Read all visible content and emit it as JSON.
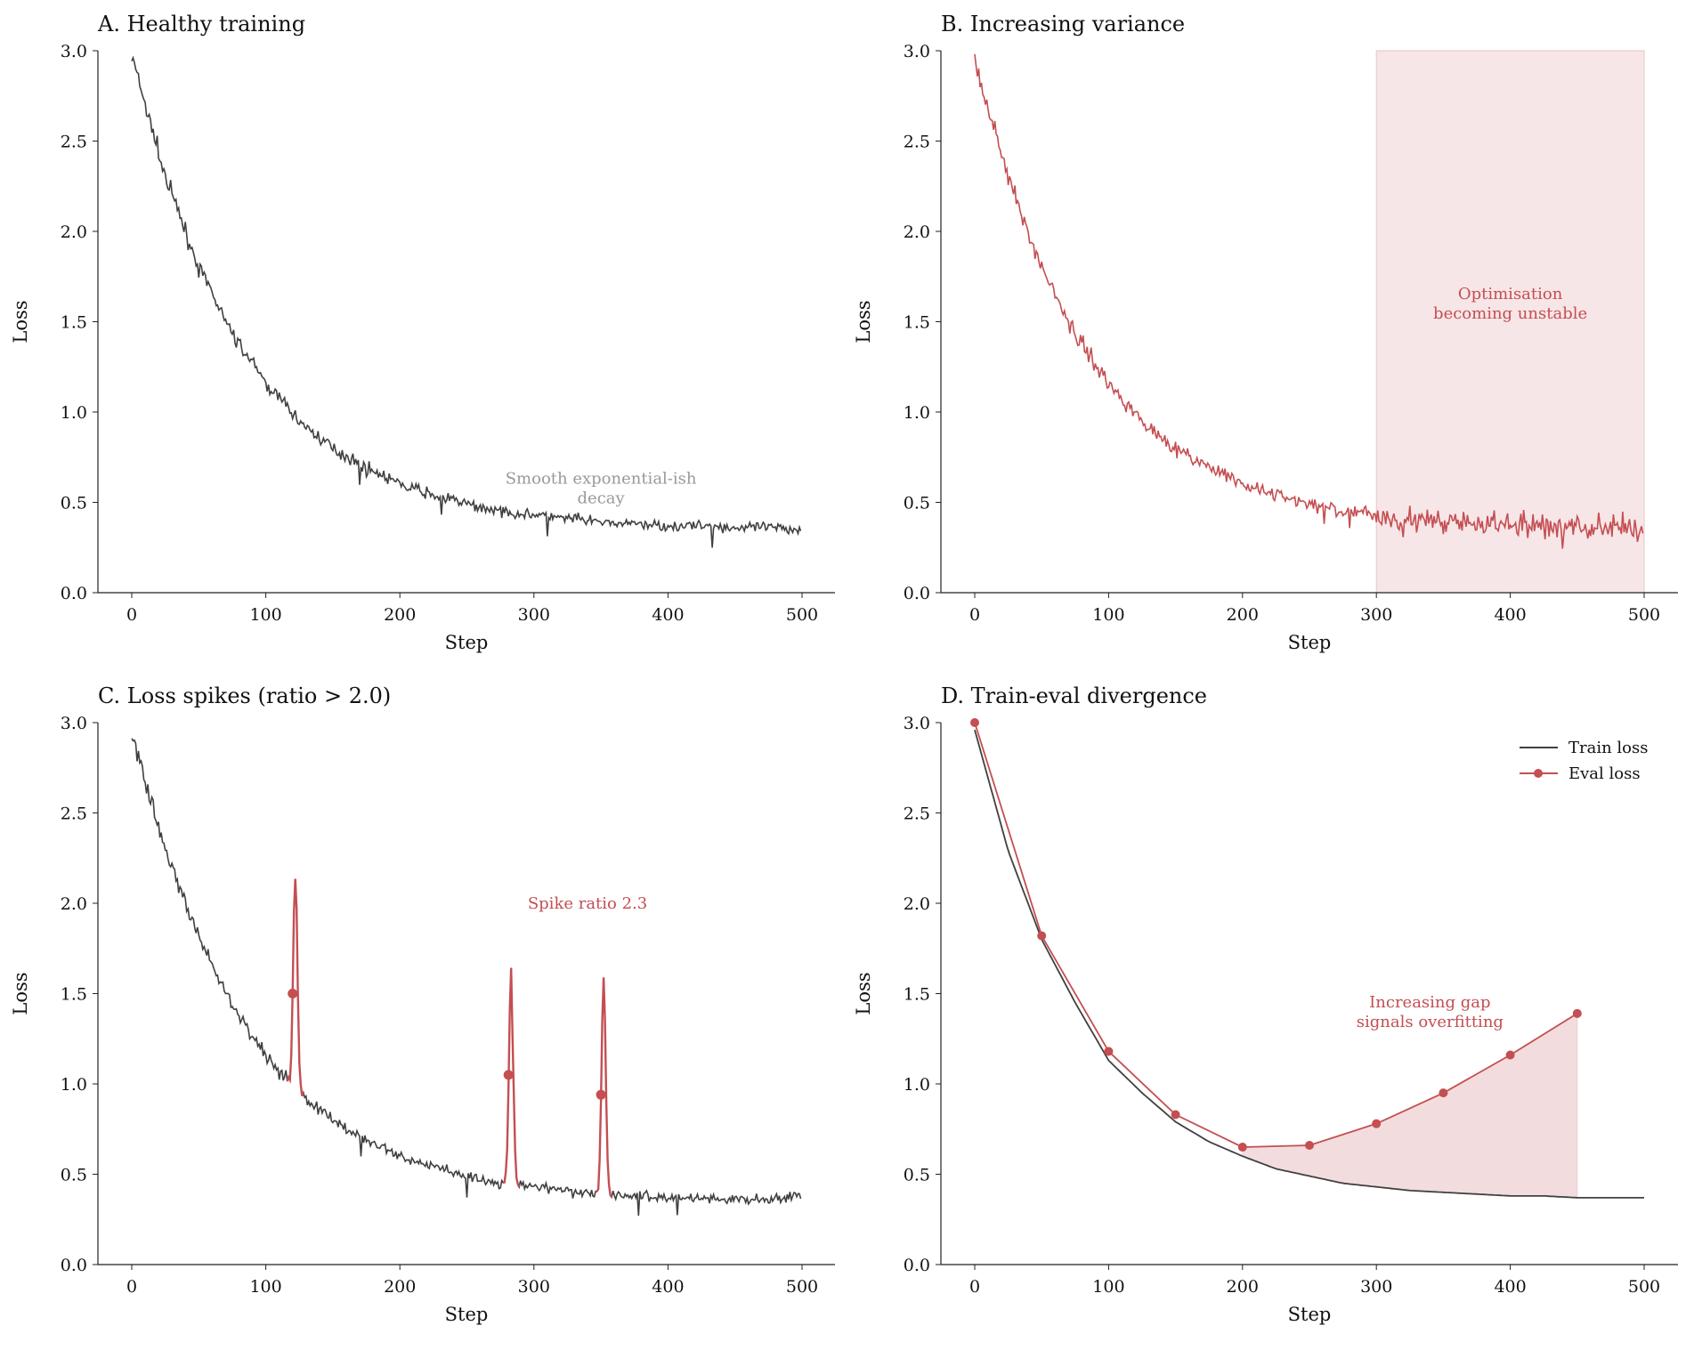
{
  "colors": {
    "train": "#404040",
    "accent": "#c44e52",
    "shade": "#f3dcdd",
    "note": "#999999"
  },
  "chart_data": [
    {
      "type": "line",
      "title": "A. Healthy training",
      "xlabel": "Step",
      "ylabel": "Loss",
      "xlim": [
        -25,
        525
      ],
      "ylim": [
        0,
        3
      ],
      "xticks": [
        "0",
        "100",
        "200",
        "300",
        "400",
        "500"
      ],
      "yticks": [
        "0.0",
        "0.5",
        "1.0",
        "1.5",
        "2.0",
        "2.5",
        "3.0"
      ],
      "grid": false,
      "x": [
        0,
        25,
        50,
        75,
        100,
        125,
        150,
        175,
        200,
        225,
        250,
        275,
        300,
        325,
        350,
        375,
        400,
        425,
        450,
        475,
        500
      ],
      "values": [
        2.97,
        2.3,
        1.8,
        1.43,
        1.16,
        0.95,
        0.8,
        0.69,
        0.6,
        0.54,
        0.49,
        0.45,
        0.43,
        0.41,
        0.39,
        0.38,
        0.37,
        0.37,
        0.36,
        0.36,
        0.35
      ],
      "annotation": {
        "lines": [
          "Smooth exponential-ish",
          "decay"
        ],
        "x": 350,
        "y": 0.58
      }
    },
    {
      "type": "line",
      "title": "B. Increasing variance",
      "xlabel": "Step",
      "ylabel": "Loss",
      "xlim": [
        -25,
        525
      ],
      "ylim": [
        0,
        3
      ],
      "xticks": [
        "0",
        "100",
        "200",
        "300",
        "400",
        "500"
      ],
      "yticks": [
        "0.0",
        "0.5",
        "1.0",
        "1.5",
        "2.0",
        "2.5",
        "3.0"
      ],
      "grid": false,
      "x": [
        0,
        25,
        50,
        75,
        100,
        125,
        150,
        175,
        200,
        225,
        250,
        275,
        300,
        325,
        350,
        375,
        400,
        425,
        450,
        475,
        500
      ],
      "values": [
        2.95,
        2.3,
        1.8,
        1.43,
        1.16,
        0.95,
        0.8,
        0.69,
        0.6,
        0.54,
        0.49,
        0.45,
        0.43,
        0.41,
        0.39,
        0.38,
        0.37,
        0.37,
        0.36,
        0.36,
        0.35
      ],
      "shaded_span": [
        300,
        500
      ],
      "annotation": {
        "lines": [
          "Optimisation",
          "becoming unstable"
        ],
        "x": 400,
        "y": 1.6
      }
    },
    {
      "type": "line",
      "title": "C. Loss spikes (ratio > 2.0)",
      "xlabel": "Step",
      "ylabel": "Loss",
      "xlim": [
        -25,
        525
      ],
      "ylim": [
        0,
        3
      ],
      "xticks": [
        "0",
        "100",
        "200",
        "300",
        "400",
        "500"
      ],
      "yticks": [
        "0.0",
        "0.5",
        "1.0",
        "1.5",
        "2.0",
        "2.5",
        "3.0"
      ],
      "grid": false,
      "x": [
        0,
        25,
        50,
        75,
        100,
        125,
        150,
        175,
        200,
        225,
        250,
        275,
        300,
        325,
        350,
        375,
        400,
        425,
        450,
        475,
        500
      ],
      "values": [
        2.93,
        2.3,
        1.8,
        1.43,
        1.16,
        0.95,
        0.8,
        0.69,
        0.6,
        0.54,
        0.49,
        0.45,
        0.43,
        0.41,
        0.39,
        0.38,
        0.37,
        0.37,
        0.36,
        0.36,
        0.38
      ],
      "spikes": [
        {
          "step": 122,
          "peak": 2.17,
          "marker": 1.5
        },
        {
          "step": 283,
          "peak": 1.62,
          "marker": 1.05
        },
        {
          "step": 352,
          "peak": 1.59,
          "marker": 0.94
        }
      ],
      "annotation": {
        "lines": [
          "Spike ratio 2.3"
        ],
        "x": 340,
        "y": 2.0
      }
    },
    {
      "type": "line",
      "title": "D. Train-eval divergence",
      "xlabel": "Step",
      "ylabel": "Loss",
      "xlim": [
        -25,
        525
      ],
      "ylim": [
        0,
        3
      ],
      "xticks": [
        "0",
        "100",
        "200",
        "300",
        "400",
        "500"
      ],
      "yticks": [
        "0.0",
        "0.5",
        "1.0",
        "1.5",
        "2.0",
        "2.5",
        "3.0"
      ],
      "grid": false,
      "legend": "top-right",
      "series": [
        {
          "name": "Train loss",
          "x": [
            0,
            25,
            50,
            75,
            100,
            125,
            150,
            175,
            200,
            225,
            250,
            275,
            300,
            325,
            350,
            375,
            400,
            425,
            450,
            475,
            500
          ],
          "values": [
            2.96,
            2.29,
            1.8,
            1.45,
            1.13,
            0.95,
            0.79,
            0.68,
            0.6,
            0.53,
            0.49,
            0.45,
            0.43,
            0.41,
            0.4,
            0.39,
            0.38,
            0.38,
            0.37,
            0.37,
            0.37
          ]
        },
        {
          "name": "Eval loss",
          "x": [
            0,
            50,
            100,
            150,
            200,
            250,
            300,
            350,
            400,
            450
          ],
          "values": [
            3.0,
            1.82,
            1.18,
            0.83,
            0.65,
            0.66,
            0.78,
            0.95,
            1.16,
            1.39
          ]
        }
      ],
      "shaded_gap": [
        200,
        450
      ],
      "annotation": {
        "lines": [
          "Increasing gap",
          "signals overfitting"
        ],
        "x": 340,
        "y": 1.4
      }
    }
  ]
}
